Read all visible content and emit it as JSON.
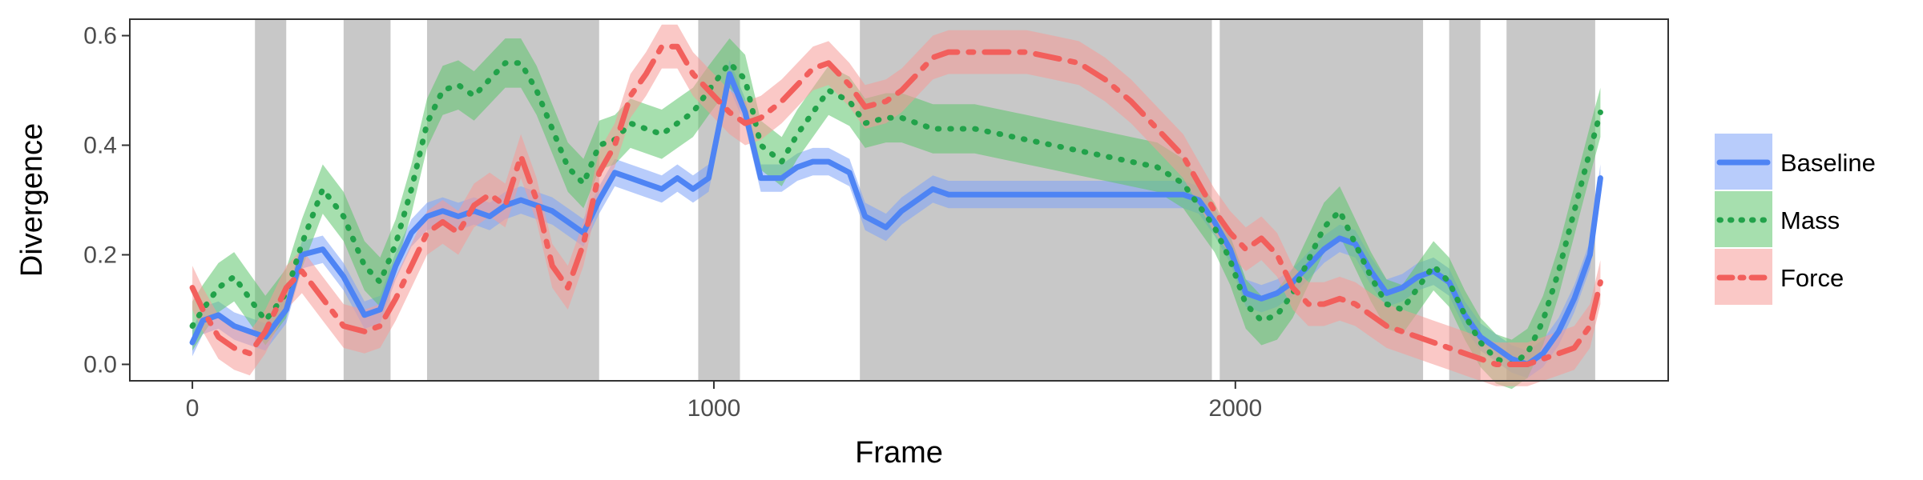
{
  "chart_data": {
    "type": "line",
    "title": "",
    "xlabel": "Frame",
    "ylabel": "Divergence",
    "xlim": [
      -120,
      2830
    ],
    "ylim": [
      -0.03,
      0.63
    ],
    "x_ticks": [
      0,
      1000,
      2000
    ],
    "y_ticks": [
      0.0,
      0.2,
      0.4,
      0.6
    ],
    "x_tick_labels": [
      "0",
      "1000",
      "2000"
    ],
    "y_tick_labels": [
      "0.0",
      "0.2",
      "0.4",
      "0.6"
    ],
    "grid": false,
    "legend_position": "right",
    "shaded_intervals": [
      [
        120,
        180
      ],
      [
        290,
        380
      ],
      [
        450,
        780
      ],
      [
        970,
        1050
      ],
      [
        1280,
        1955
      ],
      [
        1970,
        2360
      ],
      [
        2410,
        2470
      ],
      [
        2520,
        2690
      ]
    ],
    "shade_color": "#c8c8c8",
    "series": [
      {
        "name": "Baseline",
        "color": "#4e84f4",
        "band_color": "#7da3f7",
        "dash": "solid",
        "x": [
          0,
          20,
          50,
          80,
          110,
          140,
          180,
          210,
          250,
          290,
          330,
          360,
          390,
          420,
          450,
          480,
          510,
          540,
          570,
          600,
          630,
          660,
          690,
          720,
          750,
          780,
          810,
          840,
          870,
          900,
          930,
          960,
          990,
          1030,
          1060,
          1090,
          1130,
          1160,
          1190,
          1220,
          1260,
          1290,
          1330,
          1360,
          1390,
          1420,
          1450,
          1500,
          1550,
          1600,
          1650,
          1700,
          1750,
          1800,
          1850,
          1900,
          1930,
          1960,
          1990,
          2020,
          2050,
          2080,
          2110,
          2140,
          2170,
          2200,
          2230,
          2260,
          2290,
          2320,
          2350,
          2380,
          2410,
          2440,
          2470,
          2500,
          2530,
          2560,
          2590,
          2620,
          2650,
          2680,
          2700
        ],
        "y": [
          0.04,
          0.08,
          0.09,
          0.07,
          0.06,
          0.05,
          0.1,
          0.2,
          0.21,
          0.16,
          0.09,
          0.1,
          0.18,
          0.24,
          0.27,
          0.28,
          0.27,
          0.28,
          0.27,
          0.29,
          0.3,
          0.29,
          0.28,
          0.26,
          0.24,
          0.3,
          0.35,
          0.34,
          0.33,
          0.32,
          0.34,
          0.32,
          0.34,
          0.53,
          0.46,
          0.34,
          0.34,
          0.36,
          0.37,
          0.37,
          0.35,
          0.27,
          0.25,
          0.28,
          0.3,
          0.32,
          0.31,
          0.31,
          0.31,
          0.31,
          0.31,
          0.31,
          0.31,
          0.31,
          0.31,
          0.31,
          0.3,
          0.26,
          0.21,
          0.13,
          0.12,
          0.13,
          0.15,
          0.18,
          0.21,
          0.23,
          0.22,
          0.17,
          0.13,
          0.14,
          0.16,
          0.17,
          0.15,
          0.09,
          0.05,
          0.03,
          0.01,
          0.0,
          0.02,
          0.06,
          0.12,
          0.2,
          0.34
        ],
        "band_half_width": 0.025
      },
      {
        "name": "Mass",
        "color": "#22a24a",
        "band_color": "#5cc46c",
        "dash": "dotted",
        "x": [
          0,
          20,
          50,
          80,
          110,
          140,
          180,
          210,
          250,
          290,
          330,
          360,
          390,
          420,
          450,
          480,
          510,
          540,
          570,
          600,
          630,
          660,
          690,
          720,
          750,
          780,
          810,
          840,
          870,
          900,
          930,
          960,
          990,
          1030,
          1060,
          1090,
          1130,
          1160,
          1190,
          1220,
          1260,
          1290,
          1330,
          1360,
          1390,
          1420,
          1450,
          1500,
          1550,
          1600,
          1650,
          1700,
          1750,
          1800,
          1850,
          1900,
          1930,
          1960,
          1990,
          2020,
          2050,
          2080,
          2110,
          2140,
          2170,
          2200,
          2230,
          2260,
          2290,
          2320,
          2350,
          2380,
          2410,
          2440,
          2470,
          2500,
          2530,
          2560,
          2590,
          2620,
          2650,
          2680,
          2700
        ],
        "y": [
          0.07,
          0.1,
          0.14,
          0.16,
          0.12,
          0.08,
          0.13,
          0.22,
          0.32,
          0.27,
          0.18,
          0.15,
          0.22,
          0.32,
          0.44,
          0.5,
          0.51,
          0.49,
          0.52,
          0.55,
          0.55,
          0.5,
          0.43,
          0.36,
          0.33,
          0.4,
          0.41,
          0.44,
          0.43,
          0.42,
          0.44,
          0.46,
          0.5,
          0.55,
          0.52,
          0.4,
          0.37,
          0.42,
          0.46,
          0.5,
          0.48,
          0.44,
          0.45,
          0.45,
          0.44,
          0.43,
          0.43,
          0.43,
          0.42,
          0.41,
          0.4,
          0.39,
          0.38,
          0.37,
          0.36,
          0.33,
          0.29,
          0.25,
          0.19,
          0.11,
          0.08,
          0.09,
          0.13,
          0.19,
          0.25,
          0.28,
          0.22,
          0.16,
          0.11,
          0.1,
          0.14,
          0.18,
          0.15,
          0.09,
          0.04,
          0.01,
          0.0,
          0.02,
          0.08,
          0.17,
          0.28,
          0.39,
          0.46
        ],
        "band_half_width": 0.045
      },
      {
        "name": "Force",
        "color": "#f25f5c",
        "band_color": "#f59a98",
        "dash": "dashdot",
        "x": [
          0,
          20,
          50,
          80,
          110,
          140,
          180,
          210,
          250,
          290,
          330,
          360,
          390,
          420,
          450,
          480,
          510,
          540,
          570,
          600,
          630,
          660,
          690,
          720,
          750,
          780,
          810,
          840,
          870,
          900,
          930,
          960,
          990,
          1030,
          1060,
          1090,
          1130,
          1160,
          1190,
          1220,
          1260,
          1290,
          1330,
          1360,
          1390,
          1420,
          1450,
          1500,
          1550,
          1600,
          1650,
          1700,
          1750,
          1800,
          1850,
          1900,
          1930,
          1960,
          1990,
          2020,
          2050,
          2080,
          2110,
          2140,
          2170,
          2200,
          2230,
          2260,
          2290,
          2320,
          2350,
          2380,
          2410,
          2440,
          2470,
          2500,
          2530,
          2560,
          2590,
          2620,
          2650,
          2680,
          2700
        ],
        "y": [
          0.14,
          0.1,
          0.05,
          0.03,
          0.02,
          0.06,
          0.14,
          0.17,
          0.12,
          0.07,
          0.06,
          0.07,
          0.12,
          0.18,
          0.24,
          0.26,
          0.24,
          0.29,
          0.31,
          0.29,
          0.38,
          0.3,
          0.18,
          0.14,
          0.22,
          0.35,
          0.4,
          0.49,
          0.53,
          0.58,
          0.58,
          0.53,
          0.5,
          0.46,
          0.44,
          0.45,
          0.48,
          0.51,
          0.54,
          0.55,
          0.51,
          0.47,
          0.48,
          0.5,
          0.53,
          0.56,
          0.57,
          0.57,
          0.57,
          0.57,
          0.56,
          0.55,
          0.52,
          0.48,
          0.43,
          0.38,
          0.33,
          0.28,
          0.24,
          0.21,
          0.23,
          0.2,
          0.14,
          0.11,
          0.11,
          0.12,
          0.11,
          0.09,
          0.07,
          0.06,
          0.05,
          0.04,
          0.03,
          0.02,
          0.01,
          0.0,
          0.0,
          0.0,
          0.01,
          0.02,
          0.03,
          0.07,
          0.15
        ],
        "band_half_width": 0.04
      }
    ]
  }
}
